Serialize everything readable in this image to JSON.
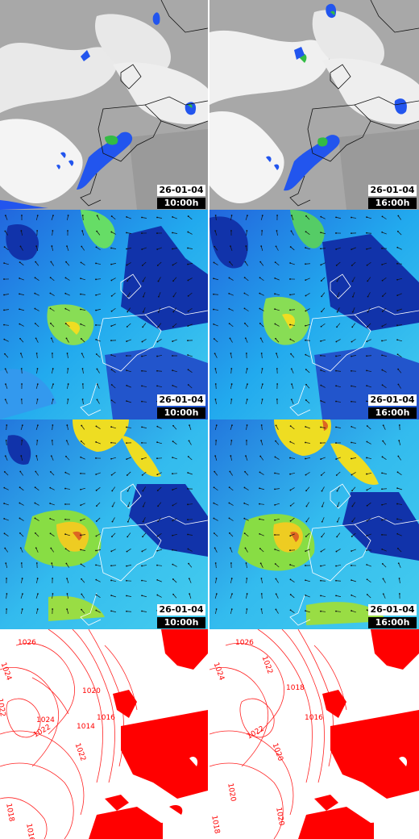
{
  "panels": [
    {
      "id": "sat-1000",
      "layer": "satellite",
      "date": "26-01-04",
      "time": "10:00h"
    },
    {
      "id": "sat-1600",
      "layer": "satellite",
      "date": "26-01-04",
      "time": "16:00h"
    },
    {
      "id": "wind-lvl1-1000",
      "layer": "wind",
      "date": "26-01-04",
      "time": "10:00h"
    },
    {
      "id": "wind-lvl1-1600",
      "layer": "wind",
      "date": "26-01-04",
      "time": "16:00h"
    },
    {
      "id": "wind-lvl2-1000",
      "layer": "wind",
      "date": "26-01-04",
      "time": "10:00h"
    },
    {
      "id": "wind-lvl2-1600",
      "layer": "wind",
      "date": "26-01-04",
      "time": "16:00h"
    },
    {
      "id": "pressure-1000",
      "layer": "isobars"
    },
    {
      "id": "pressure-1600",
      "layer": "isobars"
    }
  ],
  "isobar_labels_left": [
    "1026",
    "1024",
    "1022",
    "1020",
    "1022",
    "1016",
    "1014",
    "1024",
    "1022",
    "1018",
    "1016"
  ],
  "isobar_labels_right": [
    "1026",
    "1024",
    "1022",
    "1018",
    "1016",
    "1022",
    "1020",
    "1020",
    "1018",
    "1020"
  ],
  "colors": {
    "cloud": "#f0f0f0",
    "sky": "#a8a8a8",
    "precip": "#2255ee",
    "wind_low": "#1133aa",
    "wind_mid": "#22aaee",
    "wind_high": "#eedd22",
    "isobar": "#ff0000"
  }
}
